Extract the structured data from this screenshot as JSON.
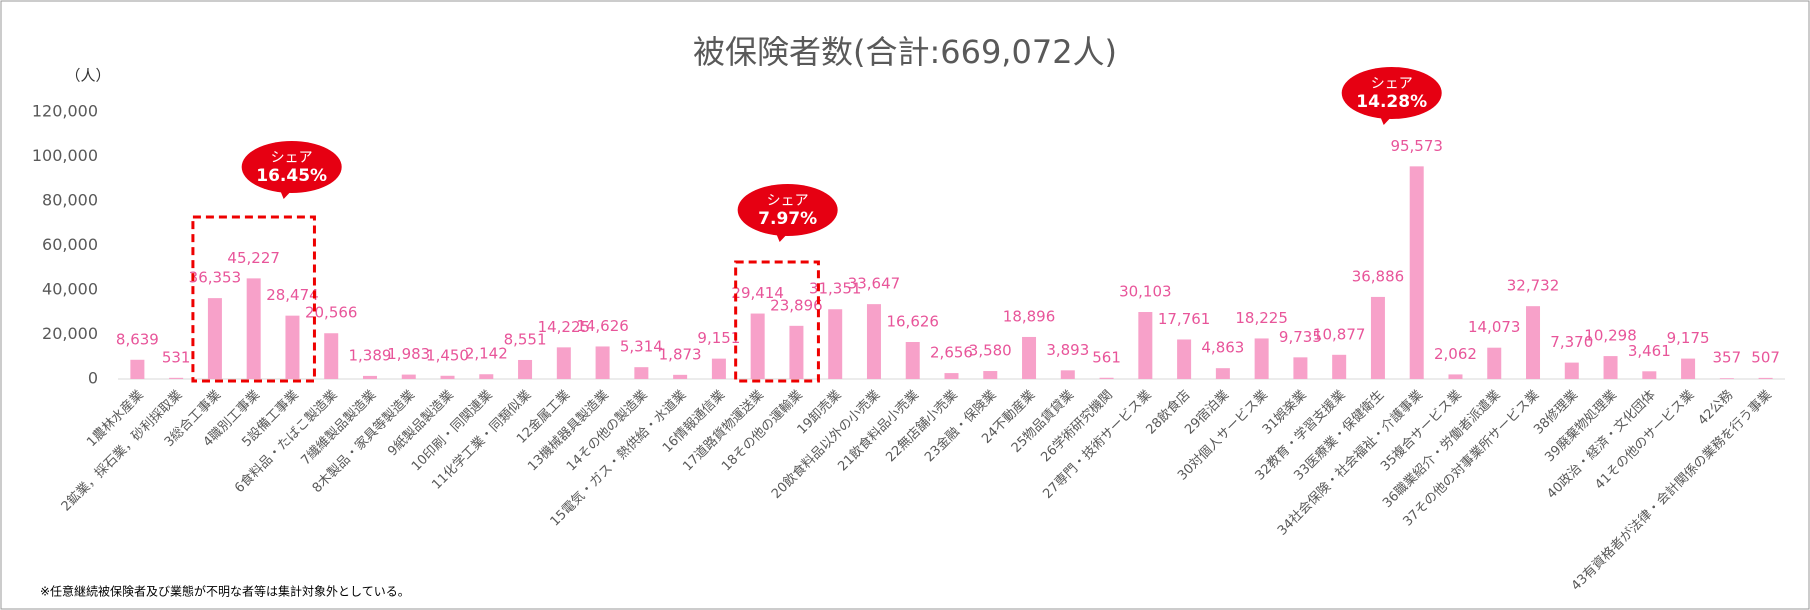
{
  "chart_data": {
    "type": "bar",
    "title": "被保険者数(合計:669,072人)",
    "y_axis_label": "（人）",
    "categories": [
      "1農林水産業",
      "2鉱業，採石業，砂利採取業",
      "3総合工事業",
      "4職別工事業",
      "5設備工事業",
      "6食料品・たばこ製造業",
      "7繊維製品製造業",
      "8木製品・家具等製造業",
      "9紙製品製造業",
      "10印刷・同関連業",
      "11化学工業・同類似業",
      "12金属工業",
      "13機械器具製造業",
      "14その他の製造業",
      "15電気・ガス・熱供給・水道業",
      "16情報通信業",
      "17道路貨物運送業",
      "18その他の運輸業",
      "19卸売業",
      "20飲食料品以外の小売業",
      "21飲食料品小売業",
      "22無店舗小売業",
      "23金融・保険業",
      "24不動産業",
      "25物品賃貸業",
      "26学術研究機関",
      "27専門・技術サービス業",
      "28飲食店",
      "29宿泊業",
      "30対個人サービス業",
      "31娯楽業",
      "32教育・学習支援業",
      "33医療業・保健衛生",
      "34社会保険・社会福祉・介護事業",
      "35複合サービス業",
      "36職業紹介・労働者派遣業",
      "37その他の対事業所サービス業",
      "38修理業",
      "39廃棄物処理業",
      "40政治・経済・文化団体",
      "41その他のサービス業",
      "42公務",
      "43有資格者が法律・会計関係の業務を行う事業"
    ],
    "values": [
      8639,
      531,
      36353,
      45227,
      28474,
      20566,
      1389,
      1983,
      1450,
      2142,
      8551,
      14225,
      14626,
      5314,
      1873,
      9151,
      29414,
      23896,
      31351,
      33647,
      16626,
      2656,
      3580,
      18896,
      3893,
      561,
      30103,
      17761,
      4863,
      18225,
      9735,
      10877,
      36886,
      95573,
      2062,
      14073,
      32732,
      7370,
      10298,
      3461,
      9175,
      357,
      507
    ],
    "value_labels": [
      "8,639",
      "531",
      "36,353",
      "45,227",
      "28,474",
      "20,566",
      "1,389",
      "1,983",
      "1,450",
      "2,142",
      "8,551",
      "14,225",
      "14,626",
      "5,314",
      "1,873",
      "9,151",
      "29,414",
      "23,896",
      "31,351",
      "33,647",
      "16,626",
      "2,656",
      "3,580",
      "18,896",
      "3,893",
      "561",
      "30,103",
      "17,761",
      "4,863",
      "18,225",
      "9,735",
      "10,877",
      "36,886",
      "95,573",
      "2,062",
      "14,073",
      "32,732",
      "7,370",
      "10,298",
      "3,461",
      "9,175",
      "357",
      "507"
    ],
    "color": "#f7a1c9",
    "label_color": "#e8559a",
    "ylim": [
      0,
      120000
    ],
    "yticks": [
      0,
      {
        "value": 20000,
        "label": "20,000"
      },
      {
        "value": 40000,
        "label": "40,000"
      },
      {
        "value": 60000,
        "label": "60,000"
      },
      {
        "value": 80000,
        "label": "80,000"
      },
      {
        "value": 100000,
        "label": "100,000"
      },
      {
        "value": 120000,
        "label": "120,000"
      }
    ],
    "grid": false,
    "annotations": [
      {
        "label": "シェア",
        "value": "16.45%"
      },
      {
        "label": "シェア",
        "value": "7.97%"
      },
      {
        "label": "シェア",
        "value": "14.28%"
      }
    ],
    "footnote": "※任意継続被保険者及び業態が不明な者等は集計対象外としている。"
  }
}
